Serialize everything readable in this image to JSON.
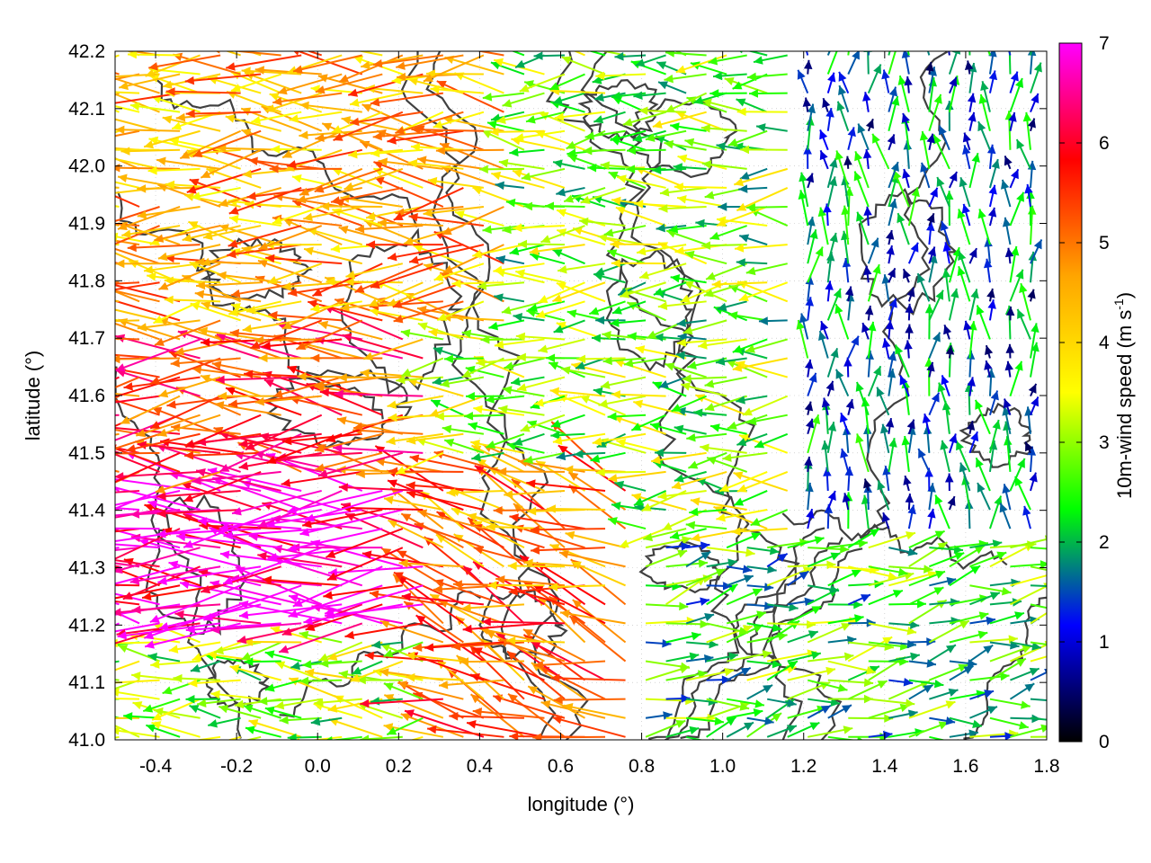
{
  "chart_data": {
    "type": "vector field",
    "xlabel": "longitude (°)",
    "ylabel": "latitude (°)",
    "xlim": [
      -0.5,
      1.8
    ],
    "ylim": [
      41.0,
      42.2
    ],
    "x_ticks": [
      -0.4,
      -0.2,
      0.0,
      0.2,
      0.4,
      0.6,
      0.8,
      1.0,
      1.2,
      1.4,
      1.6,
      1.8
    ],
    "x_tick_labels": [
      "-0.4",
      "-0.2",
      "0.0",
      "0.2",
      "0.4",
      "0.6",
      "0.8",
      "1.0",
      "1.2",
      "1.4",
      "1.6",
      "1.8"
    ],
    "y_ticks": [
      41.0,
      41.1,
      41.2,
      41.3,
      41.4,
      41.5,
      41.6,
      41.7,
      41.8,
      41.9,
      42.0,
      42.1,
      42.2
    ],
    "y_tick_labels": [
      "41.0",
      "41.1",
      "41.2",
      "41.3",
      "41.4",
      "41.5",
      "41.6",
      "41.7",
      "41.8",
      "41.9",
      "42.0",
      "42.1",
      "42.2"
    ],
    "grid": true,
    "colorbar": {
      "label": "10m-wind speed (m s-1)",
      "label_main": "10m-wind speed (m s",
      "label_sup": "-1",
      "label_end": ")",
      "range": [
        0,
        7
      ],
      "ticks": [
        0,
        1,
        2,
        3,
        4,
        5,
        6,
        7
      ],
      "tick_labels": [
        "0",
        "1",
        "2",
        "3",
        "4",
        "5",
        "6",
        "7"
      ],
      "colors": [
        "#000000",
        "#0000ff",
        "#00ff00",
        "#ffff00",
        "#ffa500",
        "#ff0000",
        "#ff00ff"
      ]
    },
    "contour_color": "#404040",
    "vector_regions_description_values": [
      {
        "lon_range": [
          -0.5,
          0.3
        ],
        "lat_range": [
          41.2,
          41.45
        ],
        "speed": 6.8,
        "direction_deg": 270
      },
      {
        "lon_range": [
          -0.5,
          0.3
        ],
        "lat_range": [
          41.45,
          41.7
        ],
        "speed": 5.5,
        "direction_deg": 270
      },
      {
        "lon_range": [
          -0.5,
          0.5
        ],
        "lat_range": [
          41.7,
          42.2
        ],
        "speed": 4.5,
        "direction_deg": 270
      },
      {
        "lon_range": [
          0.3,
          0.8
        ],
        "lat_range": [
          41.0,
          41.5
        ],
        "speed": 5.0,
        "direction_deg": 290
      },
      {
        "lon_range": [
          0.5,
          1.2
        ],
        "lat_range": [
          41.5,
          42.2
        ],
        "speed": 2.8,
        "direction_deg": 270
      },
      {
        "lon_range": [
          0.8,
          1.8
        ],
        "lat_range": [
          41.0,
          41.35
        ],
        "speed": 2.4,
        "direction_deg": 80
      },
      {
        "lon_range": [
          1.2,
          1.8
        ],
        "lat_range": [
          41.35,
          42.2
        ],
        "speed": 1.5,
        "direction_deg": 0
      }
    ]
  }
}
